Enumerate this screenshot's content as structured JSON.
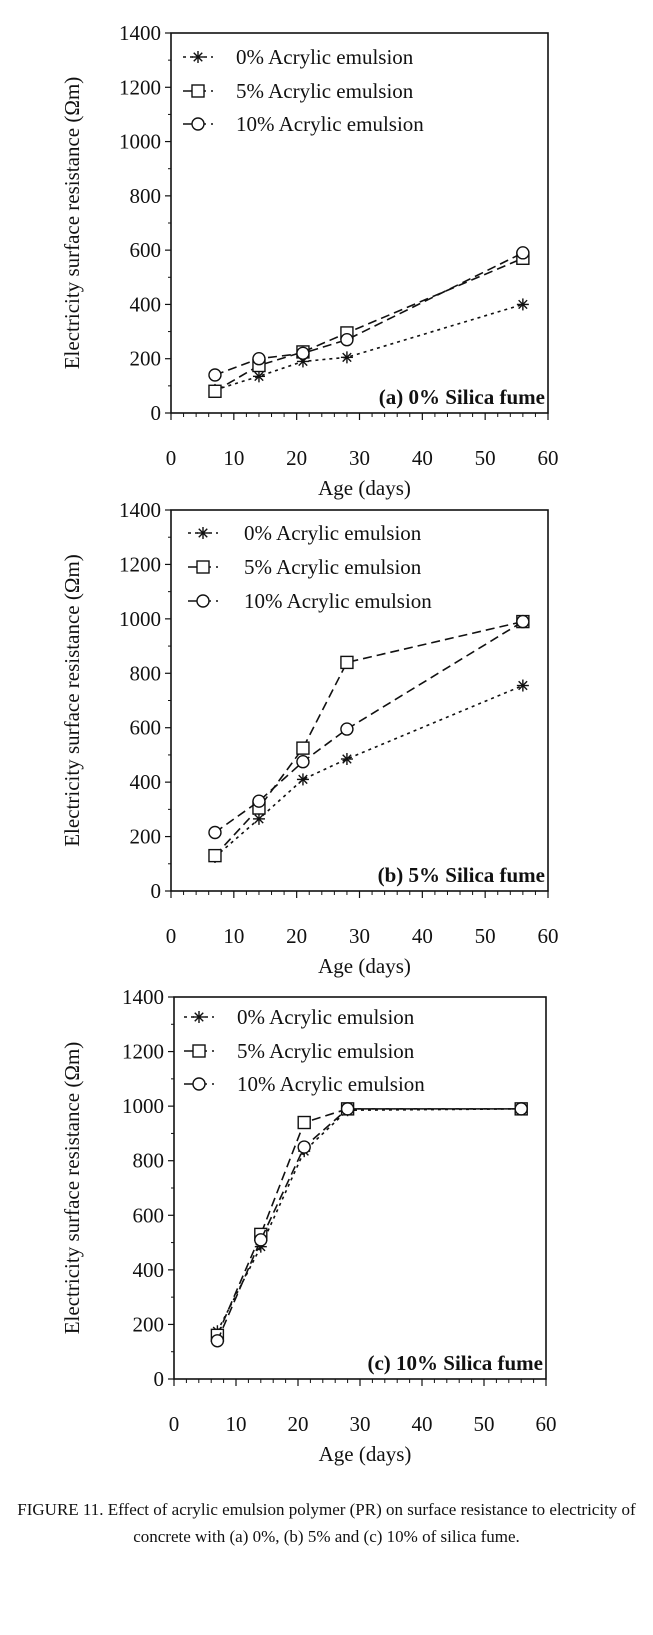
{
  "figure": {
    "caption_label": "FIGURE 11.",
    "caption_text": "Effect of acrylic emulsion polymer (PR) on surface resistance to electricity of concrete with (a) 0%, (b) 5% and (c) 10% of silica fume."
  },
  "chart_data": [
    {
      "type": "line",
      "panel_label": "(a) 0% Silica fume",
      "xlabel": "Age (days)",
      "ylabel": "Electricity surface resistance (Ωm)",
      "xlim": [
        0,
        60
      ],
      "ylim": [
        0,
        1400
      ],
      "xticks": [
        "0",
        "10",
        "20",
        "30",
        "40",
        "50",
        "60"
      ],
      "yticks": [
        "0",
        "200",
        "400",
        "600",
        "800",
        "1000",
        "1200",
        "1400"
      ],
      "grid": false,
      "legend_position": "top-left",
      "x": [
        7,
        14,
        21,
        28,
        56
      ],
      "series": [
        {
          "name": "0% Acrylic emulsion",
          "marker": "asterisk",
          "dash": "short",
          "values": [
            85,
            135,
            190,
            205,
            400
          ]
        },
        {
          "name": "5% Acrylic emulsion",
          "marker": "square",
          "dash": "long",
          "values": [
            80,
            175,
            225,
            295,
            570
          ]
        },
        {
          "name": "10% Acrylic emulsion",
          "marker": "circle",
          "dash": "long",
          "values": [
            140,
            200,
            220,
            270,
            590
          ]
        }
      ]
    },
    {
      "type": "line",
      "panel_label": "(b) 5% Silica fume",
      "xlabel": "Age (days)",
      "ylabel": "Electricity surface resistance (Ωm)",
      "xlim": [
        0,
        60
      ],
      "ylim": [
        0,
        1400
      ],
      "xticks": [
        "0",
        "10",
        "20",
        "30",
        "40",
        "50",
        "60"
      ],
      "yticks": [
        "0",
        "200",
        "400",
        "600",
        "800",
        "1000",
        "1200",
        "1400"
      ],
      "grid": false,
      "legend_position": "top-left",
      "x": [
        7,
        14,
        21,
        28,
        56
      ],
      "series": [
        {
          "name": "0% Acrylic emulsion",
          "marker": "asterisk",
          "dash": "short",
          "values": [
            125,
            265,
            410,
            485,
            755
          ]
        },
        {
          "name": "5% Acrylic emulsion",
          "marker": "square",
          "dash": "long",
          "values": [
            130,
            305,
            525,
            840,
            990
          ]
        },
        {
          "name": "10% Acrylic emulsion",
          "marker": "circle",
          "dash": "long",
          "values": [
            215,
            330,
            475,
            595,
            990
          ]
        }
      ]
    },
    {
      "type": "line",
      "panel_label": "(c) 10% Silica fume",
      "xlabel": "Age (days)",
      "ylabel": "Electricity surface resistance (Ωm)",
      "xlim": [
        0,
        60
      ],
      "ylim": [
        0,
        1400
      ],
      "xticks": [
        "0",
        "10",
        "20",
        "30",
        "40",
        "50",
        "60"
      ],
      "yticks": [
        "0",
        "200",
        "400",
        "600",
        "800",
        "1000",
        "1200",
        "1400"
      ],
      "grid": false,
      "legend_position": "top-left",
      "x": [
        7,
        14,
        21,
        28,
        56
      ],
      "series": [
        {
          "name": "0% Acrylic emulsion",
          "marker": "asterisk",
          "dash": "short",
          "values": [
            175,
            485,
            835,
            985,
            990
          ]
        },
        {
          "name": "5% Acrylic emulsion",
          "marker": "square",
          "dash": "long",
          "values": [
            160,
            530,
            940,
            990,
            990
          ]
        },
        {
          "name": "10% Acrylic emulsion",
          "marker": "circle",
          "dash": "long",
          "values": [
            140,
            510,
            850,
            990,
            990
          ]
        }
      ]
    }
  ]
}
